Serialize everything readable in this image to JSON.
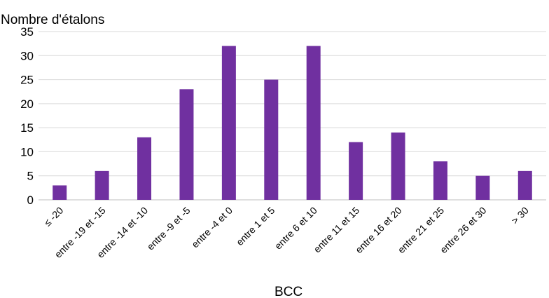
{
  "chart_data": {
    "type": "bar",
    "title": "",
    "ylabel": "Nombre d'étalons",
    "xlabel": "BCC",
    "categories": [
      "≤ -20",
      "entre -19 et -15",
      "entre -14 et -10",
      "entre -9 et -5",
      "entre -4 et 0",
      "entre 1 et 5",
      "entre 6 et 10",
      "entre 11 et 15",
      "entre 16 et 20",
      "entre 21 et 25",
      "entre 26 et 30",
      "> 30"
    ],
    "series": [
      {
        "values": [
          3,
          6,
          13,
          23,
          32,
          25,
          32,
          12,
          14,
          8,
          5,
          6
        ]
      }
    ],
    "ylim": [
      0,
      35
    ],
    "yticks": [
      "0",
      "5",
      "10",
      "15",
      "20",
      "25",
      "30",
      "35"
    ],
    "grid": true,
    "legend": "none",
    "colors": {
      "bar": "#7030A0",
      "grid": "#d9d9d9"
    }
  }
}
